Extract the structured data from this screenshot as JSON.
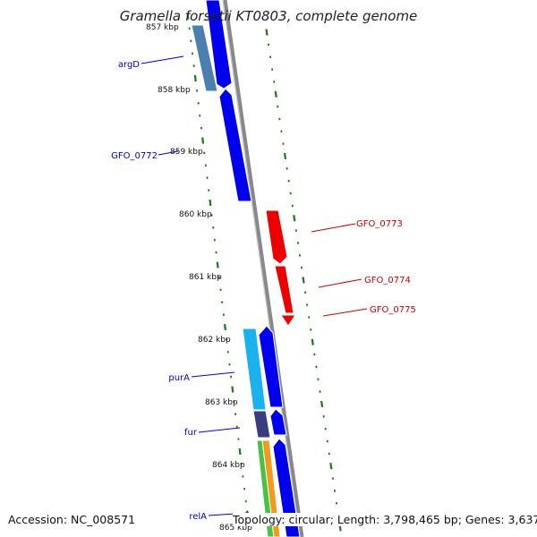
{
  "map": {
    "title": "Gramella forsetii KT0803, complete genome",
    "colors": {
      "forward_gene": "#0000ee",
      "reverse_gene": "#ee0000",
      "backbone": "#888888",
      "tick_marks": "#1a7a1a",
      "steel_blue_feature": "#4a7fb0",
      "cyan_feature": "#19b2ee",
      "indigo_feature": "#3a3b80",
      "green_feature": "#44c444",
      "orange_feature": "#f39a1e"
    },
    "ruler_labels": [
      "857 kbp",
      "858 kbp",
      "859 kbp",
      "860 kbp",
      "861 kbp",
      "862 kbp",
      "863 kbp",
      "864 kbp",
      "865 kbp"
    ],
    "gene_labels": {
      "argD": "argD",
      "GFO_0772": "GFO_0772",
      "GFO_0773": "GFO_0773",
      "GFO_0774": "GFO_0774",
      "GFO_0775": "GFO_0775",
      "purA": "purA",
      "fur": "fur",
      "relA": "relA"
    }
  },
  "footer": {
    "accession": "Accession: NC_008571",
    "summary": "Topology: circular; Length: 3,798,465 bp; Genes: 3,637"
  }
}
